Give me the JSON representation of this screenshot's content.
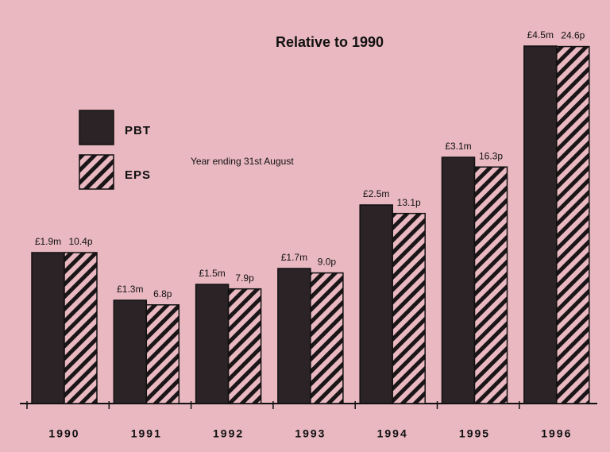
{
  "chart_data": {
    "type": "bar",
    "title": "Relative to 1990",
    "subtitle": "Year ending 31st August",
    "categories": [
      "1990",
      "1991",
      "1992",
      "1993",
      "1994",
      "1995",
      "1996"
    ],
    "series": [
      {
        "name": "PBT",
        "color": "#2b2326",
        "pattern": "solid",
        "values": [
          1.9,
          1.3,
          1.5,
          1.7,
          2.5,
          3.1,
          4.5
        ],
        "value_labels": [
          "£1.9m",
          "£1.3m",
          "£1.5m",
          "£1.7m",
          "£2.5m",
          "£3.1m",
          "£4.5m"
        ]
      },
      {
        "name": "EPS",
        "color": "#1a1517",
        "pattern": "hatched",
        "values": [
          10.4,
          6.8,
          7.9,
          9.0,
          13.1,
          16.3,
          24.6
        ],
        "value_labels": [
          "10.4p",
          "6.8p",
          "7.9p",
          "9.0p",
          "13.1p",
          "16.3p",
          "24.6p"
        ]
      }
    ]
  }
}
